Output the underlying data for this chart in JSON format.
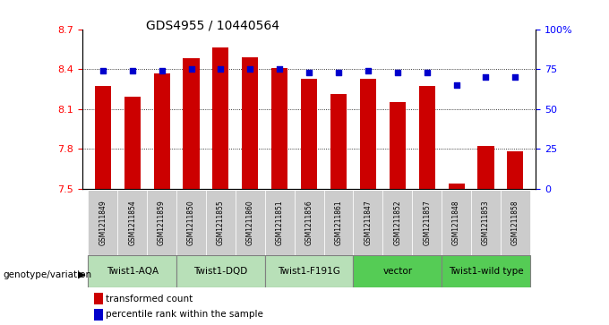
{
  "title": "GDS4955 / 10440564",
  "samples": [
    "GSM1211849",
    "GSM1211854",
    "GSM1211859",
    "GSM1211850",
    "GSM1211855",
    "GSM1211860",
    "GSM1211851",
    "GSM1211856",
    "GSM1211861",
    "GSM1211847",
    "GSM1211852",
    "GSM1211857",
    "GSM1211848",
    "GSM1211853",
    "GSM1211858"
  ],
  "bar_values": [
    8.27,
    8.19,
    8.37,
    8.48,
    8.56,
    8.49,
    8.41,
    8.33,
    8.21,
    8.33,
    8.15,
    8.27,
    7.54,
    7.82,
    7.78
  ],
  "dot_values": [
    74,
    74,
    74,
    75,
    75,
    75,
    75,
    73,
    73,
    74,
    73,
    73,
    65,
    70,
    70
  ],
  "groups": [
    {
      "label": "Twist1-AQA",
      "start": 0,
      "end": 3,
      "color": "#b8e0b8"
    },
    {
      "label": "Twist1-DQD",
      "start": 3,
      "end": 6,
      "color": "#b8e0b8"
    },
    {
      "label": "Twist1-F191G",
      "start": 6,
      "end": 9,
      "color": "#b8e0b8"
    },
    {
      "label": "vector",
      "start": 9,
      "end": 12,
      "color": "#55cc55"
    },
    {
      "label": "Twist1-wild type",
      "start": 12,
      "end": 15,
      "color": "#55cc55"
    }
  ],
  "ylim_left": [
    7.5,
    8.7
  ],
  "ylim_right": [
    0,
    100
  ],
  "yticks_left": [
    7.5,
    7.8,
    8.1,
    8.4,
    8.7
  ],
  "yticks_right": [
    0,
    25,
    50,
    75,
    100
  ],
  "ytick_labels_right": [
    "0",
    "25",
    "50",
    "75",
    "100%"
  ],
  "bar_color": "#cc0000",
  "dot_color": "#0000cc",
  "bar_bottom": 7.5,
  "grid_dotted_values": [
    7.8,
    8.1,
    8.4
  ],
  "sample_cell_color": "#cccccc",
  "legend_bar_label": "transformed count",
  "legend_dot_label": "percentile rank within the sample",
  "genotype_label": "genotype/variation"
}
